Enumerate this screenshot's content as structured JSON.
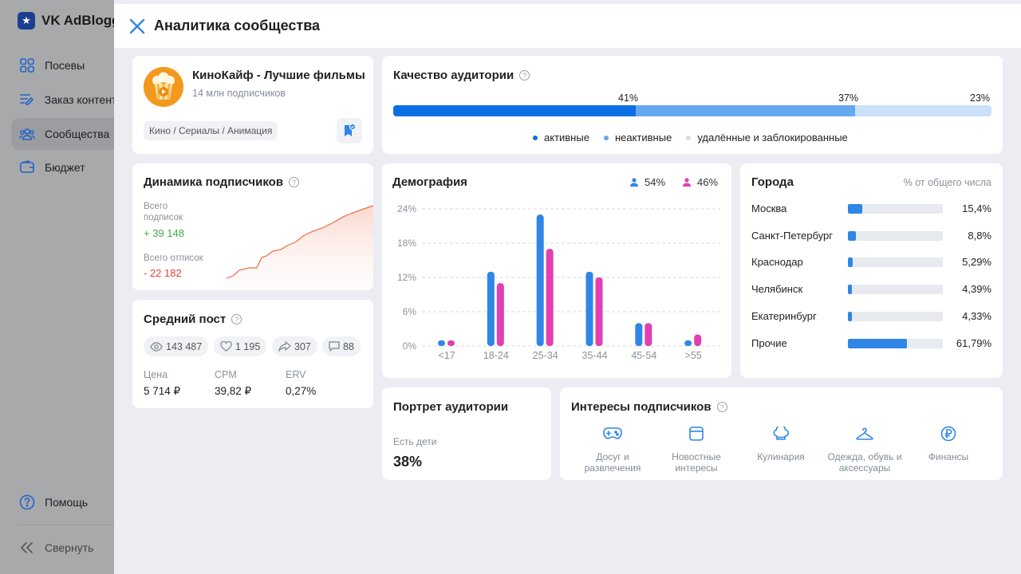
{
  "sidebar": {
    "brand": "VK AdBlogger",
    "items": [
      {
        "label": "Посевы",
        "icon": "grid-icon"
      },
      {
        "label": "Заказ контента",
        "icon": "edit-list-icon"
      },
      {
        "label": "Сообщества",
        "icon": "users-icon"
      },
      {
        "label": "Бюджет",
        "icon": "wallet-icon"
      }
    ],
    "help_label": "Помощь",
    "collapse_label": "Свернуть"
  },
  "modal": {
    "title": "Аналитика сообщества"
  },
  "community": {
    "name": "КиноКайф - Лучшие фильмы",
    "subscribers": "14 млн подписчиков",
    "tag": "Кино / Сериалы / Анимация"
  },
  "quality": {
    "title": "Качество аудитории",
    "segments": [
      {
        "label": "активные",
        "pct_label": "41%",
        "value": 41,
        "color": "#0b6fe3"
      },
      {
        "label": "неактивные",
        "pct_label": "37%",
        "value": 37,
        "color": "#64a8ee"
      },
      {
        "label": "удалённые и заблокированные",
        "pct_label": "23%",
        "value": 23,
        "color": "#cbe1f8"
      }
    ]
  },
  "dynamics": {
    "title": "Динамика подписчиков",
    "subs_label": "Всего подписок",
    "subs_value": "+ 39 148",
    "unsubs_label": "Всего отписок",
    "unsubs_value": "- 22 182"
  },
  "avg_post": {
    "title": "Средний пост",
    "views": "143 487",
    "likes": "1 195",
    "shares": "307",
    "comments": "88",
    "price_label": "Цена",
    "price": "5 714 ₽",
    "cpm_label": "CPM",
    "cpm": "39,82 ₽",
    "erv_label": "ERV",
    "erv": "0,27%"
  },
  "demography": {
    "title": "Демография",
    "male_pct": "54%",
    "female_pct": "46%",
    "male_color": "#2f86e6",
    "female_color": "#e23fb2"
  },
  "chart_data": {
    "type": "bar",
    "title": "Демография",
    "categories": [
      "<17",
      "18-24",
      "25-34",
      "35-44",
      "45-54",
      ">55"
    ],
    "series": [
      {
        "values": [
          1,
          13,
          23,
          13,
          4,
          1
        ]
      },
      {
        "values": [
          1,
          11,
          17,
          12,
          4,
          2
        ]
      }
    ],
    "yticks": [
      "0%",
      "6%",
      "12%",
      "18%",
      "24%"
    ],
    "ylim": [
      0,
      24
    ],
    "grid": true
  },
  "cities": {
    "title": "Города",
    "note": "% от общего числа",
    "rows": [
      {
        "name": "Москва",
        "pct": "15,4%",
        "value": 15.4
      },
      {
        "name": "Санкт-Петербург",
        "pct": "8,8%",
        "value": 8.8
      },
      {
        "name": "Краснодар",
        "pct": "5,29%",
        "value": 5.29
      },
      {
        "name": "Челябинск",
        "pct": "4,39%",
        "value": 4.39
      },
      {
        "name": "Екатеринбург",
        "pct": "4,33%",
        "value": 4.33
      },
      {
        "name": "Прочие",
        "pct": "61,79%",
        "value": 61.79
      }
    ]
  },
  "portrait": {
    "title": "Портрет аудитории",
    "label": "Есть дети",
    "value": "38%"
  },
  "interests": {
    "title": "Интересы подписчиков",
    "items": [
      {
        "label": "Досуг и развлечения",
        "icon": "gamepad-icon"
      },
      {
        "label": "Новостные интересы",
        "icon": "news-icon"
      },
      {
        "label": "Кулинария",
        "icon": "chef-hat-icon"
      },
      {
        "label": "Одежда, обувь и аксессуары",
        "icon": "hanger-icon"
      },
      {
        "label": "Финансы",
        "icon": "ruble-icon"
      }
    ]
  }
}
